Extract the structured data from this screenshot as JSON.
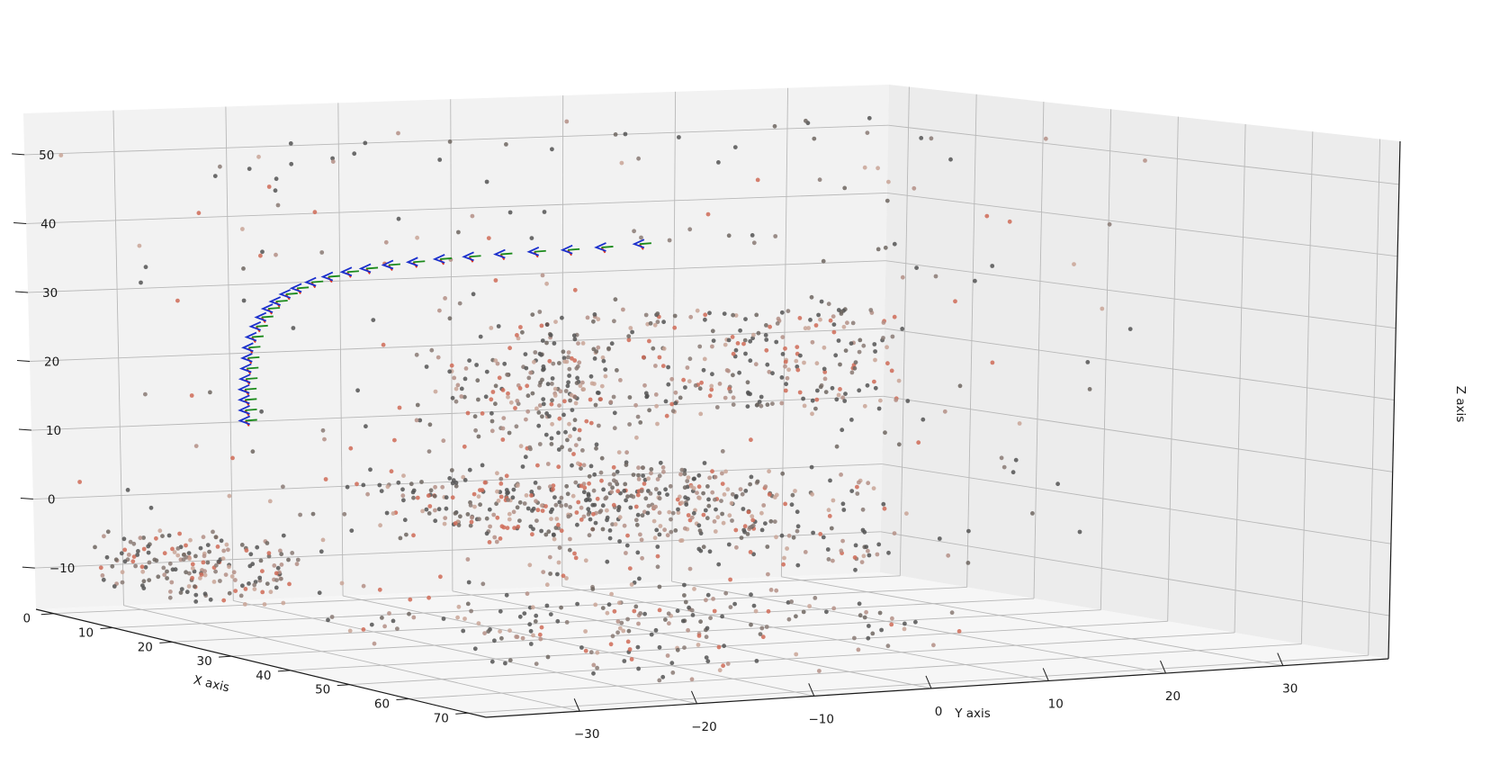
{
  "chart_data": {
    "type": "scatter",
    "projection": "3d",
    "title": "",
    "xlabel": "X axis",
    "ylabel": "Y axis",
    "zlabel": "Z axis",
    "xlim": [
      -3,
      73
    ],
    "ylim": [
      -38,
      39
    ],
    "zlim": [
      -16,
      56
    ],
    "xticks": [
      0,
      10,
      20,
      30,
      40,
      50,
      60,
      70
    ],
    "yticks": [
      -30,
      -20,
      -10,
      0,
      10,
      20,
      30
    ],
    "zticks": [
      -10,
      0,
      10,
      20,
      30,
      40,
      50
    ],
    "xtick_labels": [
      "0",
      "10",
      "20",
      "30",
      "40",
      "50",
      "60",
      "70"
    ],
    "ytick_labels": [
      "−30",
      "−20",
      "−10",
      "0",
      "10",
      "20",
      "30"
    ],
    "ztick_labels": [
      "−10",
      "0",
      "10",
      "20",
      "30",
      "40",
      "50"
    ],
    "grid": true,
    "legend": "none",
    "colors": {
      "points_dark": "#545454",
      "points_light": "#c9a596",
      "points_accent": "#cf6b57",
      "frame_axis_x": "#e0301e",
      "frame_axis_y": "#1b8a1b",
      "frame_axis_z": "#1a2fcc",
      "pane_back": "#f0f0f0",
      "pane_side": "#ebebeb",
      "pane_floor": "#f5f5f5"
    },
    "series": [
      {
        "kind": "camera_trajectory",
        "description_of_marks": "camera pose frames (red/green/blue axes)",
        "poses": [
          {
            "x": 2,
            "y": -21.4,
            "z": 11.0
          },
          {
            "x": 2,
            "y": -21.4,
            "z": 12.5
          },
          {
            "x": 2,
            "y": -21.4,
            "z": 14.0
          },
          {
            "x": 2,
            "y": -21.4,
            "z": 15.5
          },
          {
            "x": 2,
            "y": -21.3,
            "z": 17.0
          },
          {
            "x": 2,
            "y": -21.2,
            "z": 18.5
          },
          {
            "x": 2,
            "y": -21.1,
            "z": 20.0
          },
          {
            "x": 2,
            "y": -21.0,
            "z": 21.5
          },
          {
            "x": 2,
            "y": -20.7,
            "z": 23.0
          },
          {
            "x": 2,
            "y": -20.3,
            "z": 24.5
          },
          {
            "x": 2,
            "y": -19.8,
            "z": 25.8
          },
          {
            "x": 2,
            "y": -19.2,
            "z": 27.0
          },
          {
            "x": 2,
            "y": -18.5,
            "z": 28.0
          },
          {
            "x": 2,
            "y": -17.6,
            "z": 29.0
          },
          {
            "x": 2,
            "y": -16.6,
            "z": 29.8
          },
          {
            "x": 2,
            "y": -15.3,
            "z": 30.6
          },
          {
            "x": 2,
            "y": -13.8,
            "z": 31.3
          },
          {
            "x": 2,
            "y": -12.1,
            "z": 31.9
          },
          {
            "x": 2,
            "y": -10.4,
            "z": 32.3
          },
          {
            "x": 2,
            "y": -8.4,
            "z": 32.7
          },
          {
            "x": 2,
            "y": -6.2,
            "z": 33.0
          },
          {
            "x": 2,
            "y": -3.8,
            "z": 33.3
          },
          {
            "x": 2,
            "y": -1.2,
            "z": 33.5
          },
          {
            "x": 2,
            "y": 1.6,
            "z": 33.7
          },
          {
            "x": 2,
            "y": 4.6,
            "z": 33.9
          },
          {
            "x": 2,
            "y": 7.6,
            "z": 34.0
          },
          {
            "x": 2,
            "y": 10.6,
            "z": 34.2
          },
          {
            "x": 2,
            "y": 14.0,
            "z": 34.5
          }
        ]
      },
      {
        "kind": "point_cloud",
        "description_of_marks": "reconstructed 3D points",
        "clusters": [
          {
            "x_range": [
              0,
              20
            ],
            "y_range": [
              -36,
              -24
            ],
            "z_range": [
              -12,
              -4
            ],
            "count": 180
          },
          {
            "x_range": [
              30,
              72
            ],
            "y_range": [
              -30,
              5
            ],
            "z_range": [
              -14,
              -6
            ],
            "count": 200
          },
          {
            "x_range": [
              5,
              25
            ],
            "y_range": [
              -15,
              15
            ],
            "z_range": [
              -4,
              4
            ],
            "count": 360
          },
          {
            "x_range": [
              0,
              10
            ],
            "y_range": [
              0,
              35
            ],
            "z_range": [
              10,
              25
            ],
            "count": 320
          },
          {
            "x_range": [
              0,
              10
            ],
            "y_range": [
              -5,
              10
            ],
            "z_range": [
              5,
              20
            ],
            "count": 120
          },
          {
            "x_range": [
              0,
              10
            ],
            "y_range": [
              5,
              35
            ],
            "z_range": [
              -12,
              0
            ],
            "count": 150
          },
          {
            "x_range": [
              0,
              40
            ],
            "y_range": [
              -38,
              38
            ],
            "z_range": [
              -14,
              55
            ],
            "count": 260
          }
        ]
      }
    ]
  }
}
